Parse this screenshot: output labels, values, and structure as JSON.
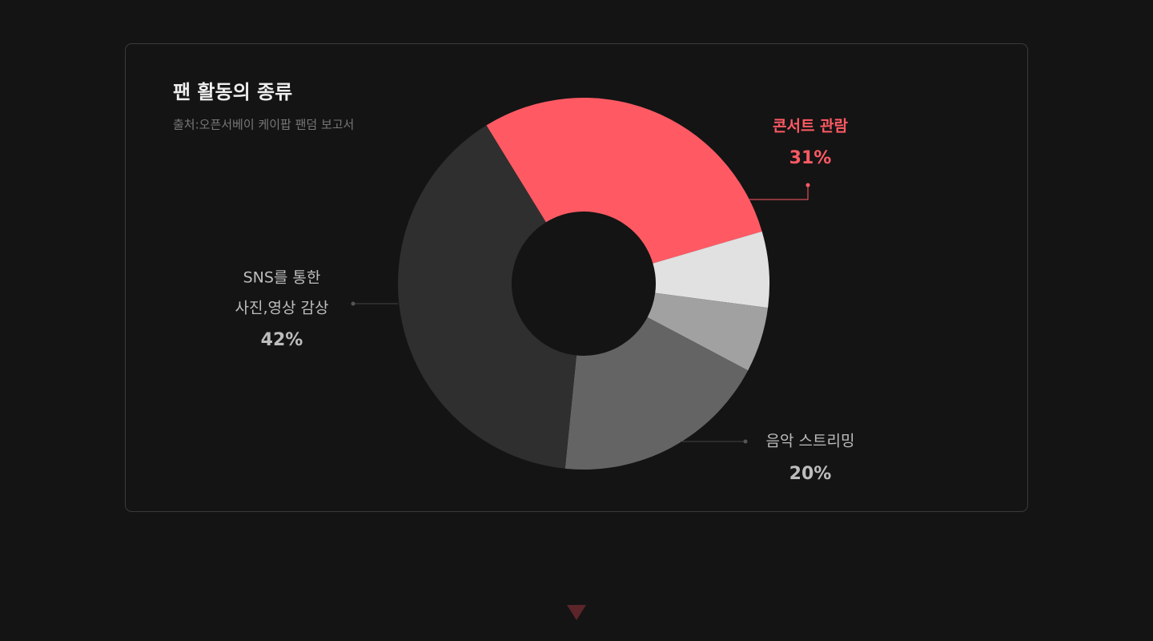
{
  "chart_data": {
    "type": "donut",
    "title": "팬 활동의 종류",
    "subtitle": "출처:오픈서베이 케이팝 팬덤 보고서",
    "categories": [
      "콘서트 관람",
      null,
      null,
      "음악 스트리밍",
      [
        "SNS를 통한",
        "사진,영상 감상"
      ]
    ],
    "values": [
      31,
      7,
      6,
      20,
      42
    ],
    "value_labels": [
      "31%",
      null,
      null,
      "20%",
      "42%"
    ],
    "colors": [
      "#ff5a64",
      "#e1e1e1",
      "#a1a1a1",
      "#646464",
      "#2f2f2f"
    ],
    "label_colors": [
      "#ff5a64",
      null,
      null,
      "#bdbdbd",
      "#bdbdbd"
    ]
  }
}
